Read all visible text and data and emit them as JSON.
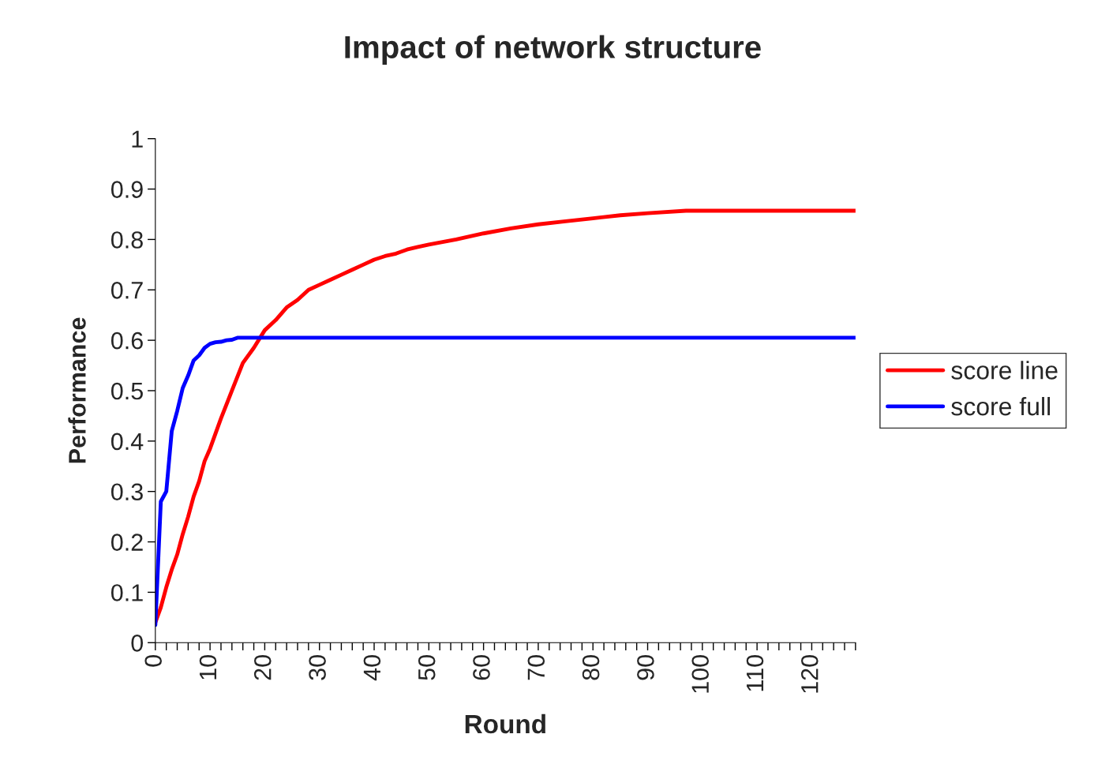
{
  "chart_data": {
    "type": "line",
    "title": "Impact of network structure",
    "xlabel": "Round",
    "ylabel": "Performance",
    "xlim": [
      0,
      128
    ],
    "xticks": [
      0,
      {
        "value": 2,
        "label": null
      },
      {
        "value": 4,
        "label": null
      },
      {
        "value": 6,
        "label": null
      },
      {
        "value": 8,
        "label": null
      },
      10,
      {
        "value": 12,
        "label": null
      },
      {
        "value": 14,
        "label": null
      },
      {
        "value": 16,
        "label": null
      },
      {
        "value": 18,
        "label": null
      },
      20,
      {
        "value": 22,
        "label": null
      },
      {
        "value": 24,
        "label": null
      },
      {
        "value": 26,
        "label": null
      },
      {
        "value": 28,
        "label": null
      },
      30,
      {
        "value": 32,
        "label": null
      },
      {
        "value": 34,
        "label": null
      },
      {
        "value": 36,
        "label": null
      },
      {
        "value": 38,
        "label": null
      },
      40,
      {
        "value": 42,
        "label": null
      },
      {
        "value": 44,
        "label": null
      },
      {
        "value": 46,
        "label": null
      },
      {
        "value": 48,
        "label": null
      },
      50,
      {
        "value": 52,
        "label": null
      },
      {
        "value": 54,
        "label": null
      },
      {
        "value": 56,
        "label": null
      },
      {
        "value": 58,
        "label": null
      },
      60,
      {
        "value": 62,
        "label": null
      },
      {
        "value": 64,
        "label": null
      },
      {
        "value": 66,
        "label": null
      },
      {
        "value": 68,
        "label": null
      },
      70,
      {
        "value": 72,
        "label": null
      },
      {
        "value": 74,
        "label": null
      },
      {
        "value": 76,
        "label": null
      },
      {
        "value": 78,
        "label": null
      },
      80,
      {
        "value": 82,
        "label": null
      },
      {
        "value": 84,
        "label": null
      },
      {
        "value": 86,
        "label": null
      },
      {
        "value": 88,
        "label": null
      },
      90,
      {
        "value": 92,
        "label": null
      },
      {
        "value": 94,
        "label": null
      },
      {
        "value": 96,
        "label": null
      },
      {
        "value": 98,
        "label": null
      },
      100,
      {
        "value": 102,
        "label": null
      },
      {
        "value": 104,
        "label": null
      },
      {
        "value": 106,
        "label": null
      },
      {
        "value": 108,
        "label": null
      },
      110,
      {
        "value": 112,
        "label": null
      },
      {
        "value": 114,
        "label": null
      },
      {
        "value": 116,
        "label": null
      },
      {
        "value": 118,
        "label": null
      },
      120,
      {
        "value": 122,
        "label": null
      },
      {
        "value": 124,
        "label": null
      },
      {
        "value": 126,
        "label": null
      },
      {
        "value": 128,
        "label": null
      }
    ],
    "ylim": [
      0,
      1
    ],
    "yticks": [
      0,
      0.1,
      0.2,
      0.3,
      0.4,
      0.5,
      0.6,
      0.7,
      0.8,
      0.9,
      1
    ],
    "grid": false,
    "legend": "right",
    "marker": "none",
    "line_style": "solid",
    "series": [
      {
        "name": "score line",
        "color": "#ff0000",
        "x": [
          0,
          1,
          2,
          3,
          4,
          5,
          6,
          7,
          8,
          9,
          10,
          12,
          14,
          16,
          18,
          20,
          22,
          24,
          26,
          28,
          30,
          32,
          34,
          36,
          38,
          40,
          42,
          44,
          46,
          48,
          50,
          55,
          60,
          65,
          70,
          75,
          80,
          85,
          90,
          97,
          128
        ],
        "values": [
          0.04,
          0.07,
          0.11,
          0.145,
          0.175,
          0.215,
          0.25,
          0.29,
          0.32,
          0.36,
          0.385,
          0.445,
          0.5,
          0.555,
          0.585,
          0.62,
          0.64,
          0.665,
          0.68,
          0.7,
          0.71,
          0.72,
          0.73,
          0.74,
          0.75,
          0.76,
          0.767,
          0.772,
          0.78,
          0.785,
          0.79,
          0.8,
          0.812,
          0.822,
          0.83,
          0.836,
          0.842,
          0.848,
          0.852,
          0.857,
          0.857
        ]
      },
      {
        "name": "score full",
        "color": "#0000ff",
        "x": [
          0,
          1,
          2,
          3,
          4,
          5,
          6,
          7,
          8,
          9,
          10,
          11,
          12,
          13,
          14,
          15,
          128
        ],
        "values": [
          0.035,
          0.28,
          0.3,
          0.42,
          0.46,
          0.505,
          0.53,
          0.56,
          0.57,
          0.585,
          0.593,
          0.596,
          0.597,
          0.6,
          0.601,
          0.605,
          0.605
        ]
      }
    ]
  }
}
